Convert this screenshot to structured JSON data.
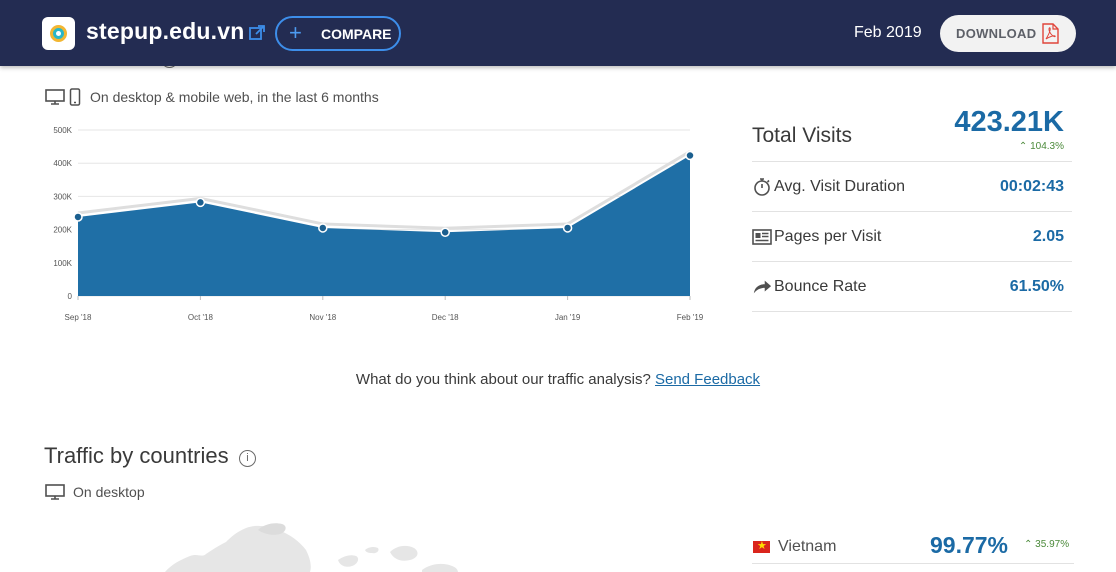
{
  "header": {
    "site": "stepup.edu.vn",
    "compare_label": "COMPARE",
    "period": "Feb 2019",
    "download_label": "DOWNLOAD",
    "bg_color": "#232c52"
  },
  "total_visits_section": {
    "title": "Total Visits",
    "device_note": "On desktop & mobile web, in the last 6 months"
  },
  "chart_data": {
    "type": "area",
    "x": [
      "Sep '18",
      "Oct '18",
      "Nov '18",
      "Dec '18",
      "Jan '19",
      "Feb '19"
    ],
    "series": [
      {
        "values": [
          238000,
          282000,
          205000,
          192000,
          205000,
          423210
        ],
        "color": "#1f6fa6"
      }
    ],
    "ylim": [
      0,
      500000
    ],
    "yticks": [
      "0",
      "100K",
      "200K",
      "300K",
      "400K",
      "500K"
    ],
    "grid": true
  },
  "metrics": {
    "total_visits": {
      "label": "Total Visits",
      "value": "423.21K",
      "change": "104.3%"
    },
    "avg_duration": {
      "label": "Avg. Visit Duration",
      "value": "00:02:43",
      "icon": "stopwatch-icon"
    },
    "pages_per_visit": {
      "label": "Pages per Visit",
      "value": "2.05",
      "icon": "pages-icon"
    },
    "bounce_rate": {
      "label": "Bounce Rate",
      "value": "61.50%",
      "icon": "bounce-arrow-icon"
    }
  },
  "feedback": {
    "question": "What do you think about our traffic analysis?",
    "link": "Send Feedback"
  },
  "countries_section": {
    "title": "Traffic by countries",
    "device_note": "On desktop",
    "top_country": {
      "name": "Vietnam",
      "share": "99.77%",
      "change": "35.97%"
    }
  }
}
